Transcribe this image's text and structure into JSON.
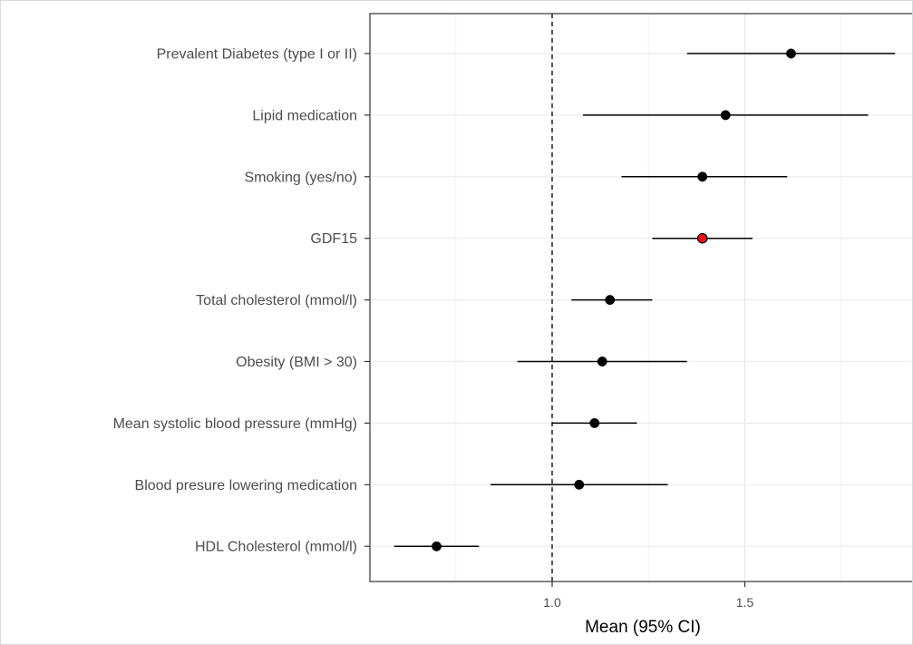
{
  "chart_data": {
    "type": "forest",
    "title": "",
    "xlabel": "Mean (95% CI)",
    "ylabel": "",
    "reference_line": 1.0,
    "reference_line_style": "dashed",
    "x_ticks": [
      {
        "value": 1.0,
        "label": "1.0"
      },
      {
        "value": 1.5,
        "label": "1.5"
      }
    ],
    "xlim": [
      0.53,
      1.94
    ],
    "grid": true,
    "theme": "black-and-white",
    "point_color_default": "#000000",
    "highlight_color": "#e8141b",
    "rows": [
      {
        "label": "Prevalent Diabetes (type I or II)",
        "estimate": 1.62,
        "lower": 1.35,
        "upper": 1.89,
        "highlight": false
      },
      {
        "label": "Lipid medication",
        "estimate": 1.45,
        "lower": 1.08,
        "upper": 1.82,
        "highlight": false
      },
      {
        "label": "Smoking (yes/no)",
        "estimate": 1.39,
        "lower": 1.18,
        "upper": 1.61,
        "highlight": false
      },
      {
        "label": "GDF15",
        "estimate": 1.39,
        "lower": 1.26,
        "upper": 1.52,
        "highlight": true
      },
      {
        "label": "Total cholesterol (mmol/l)",
        "estimate": 1.15,
        "lower": 1.05,
        "upper": 1.26,
        "highlight": false
      },
      {
        "label": "Obesity (BMI > 30)",
        "estimate": 1.13,
        "lower": 0.91,
        "upper": 1.35,
        "highlight": false
      },
      {
        "label": "Mean systolic blood pressure (mmHg)",
        "estimate": 1.11,
        "lower": 1.0,
        "upper": 1.22,
        "highlight": false
      },
      {
        "label": "Blood presure lowering medication",
        "estimate": 1.07,
        "lower": 0.84,
        "upper": 1.3,
        "highlight": false
      },
      {
        "label": "HDL Cholesterol (mmol/l)",
        "estimate": 0.7,
        "lower": 0.59,
        "upper": 0.81,
        "highlight": false
      }
    ]
  }
}
